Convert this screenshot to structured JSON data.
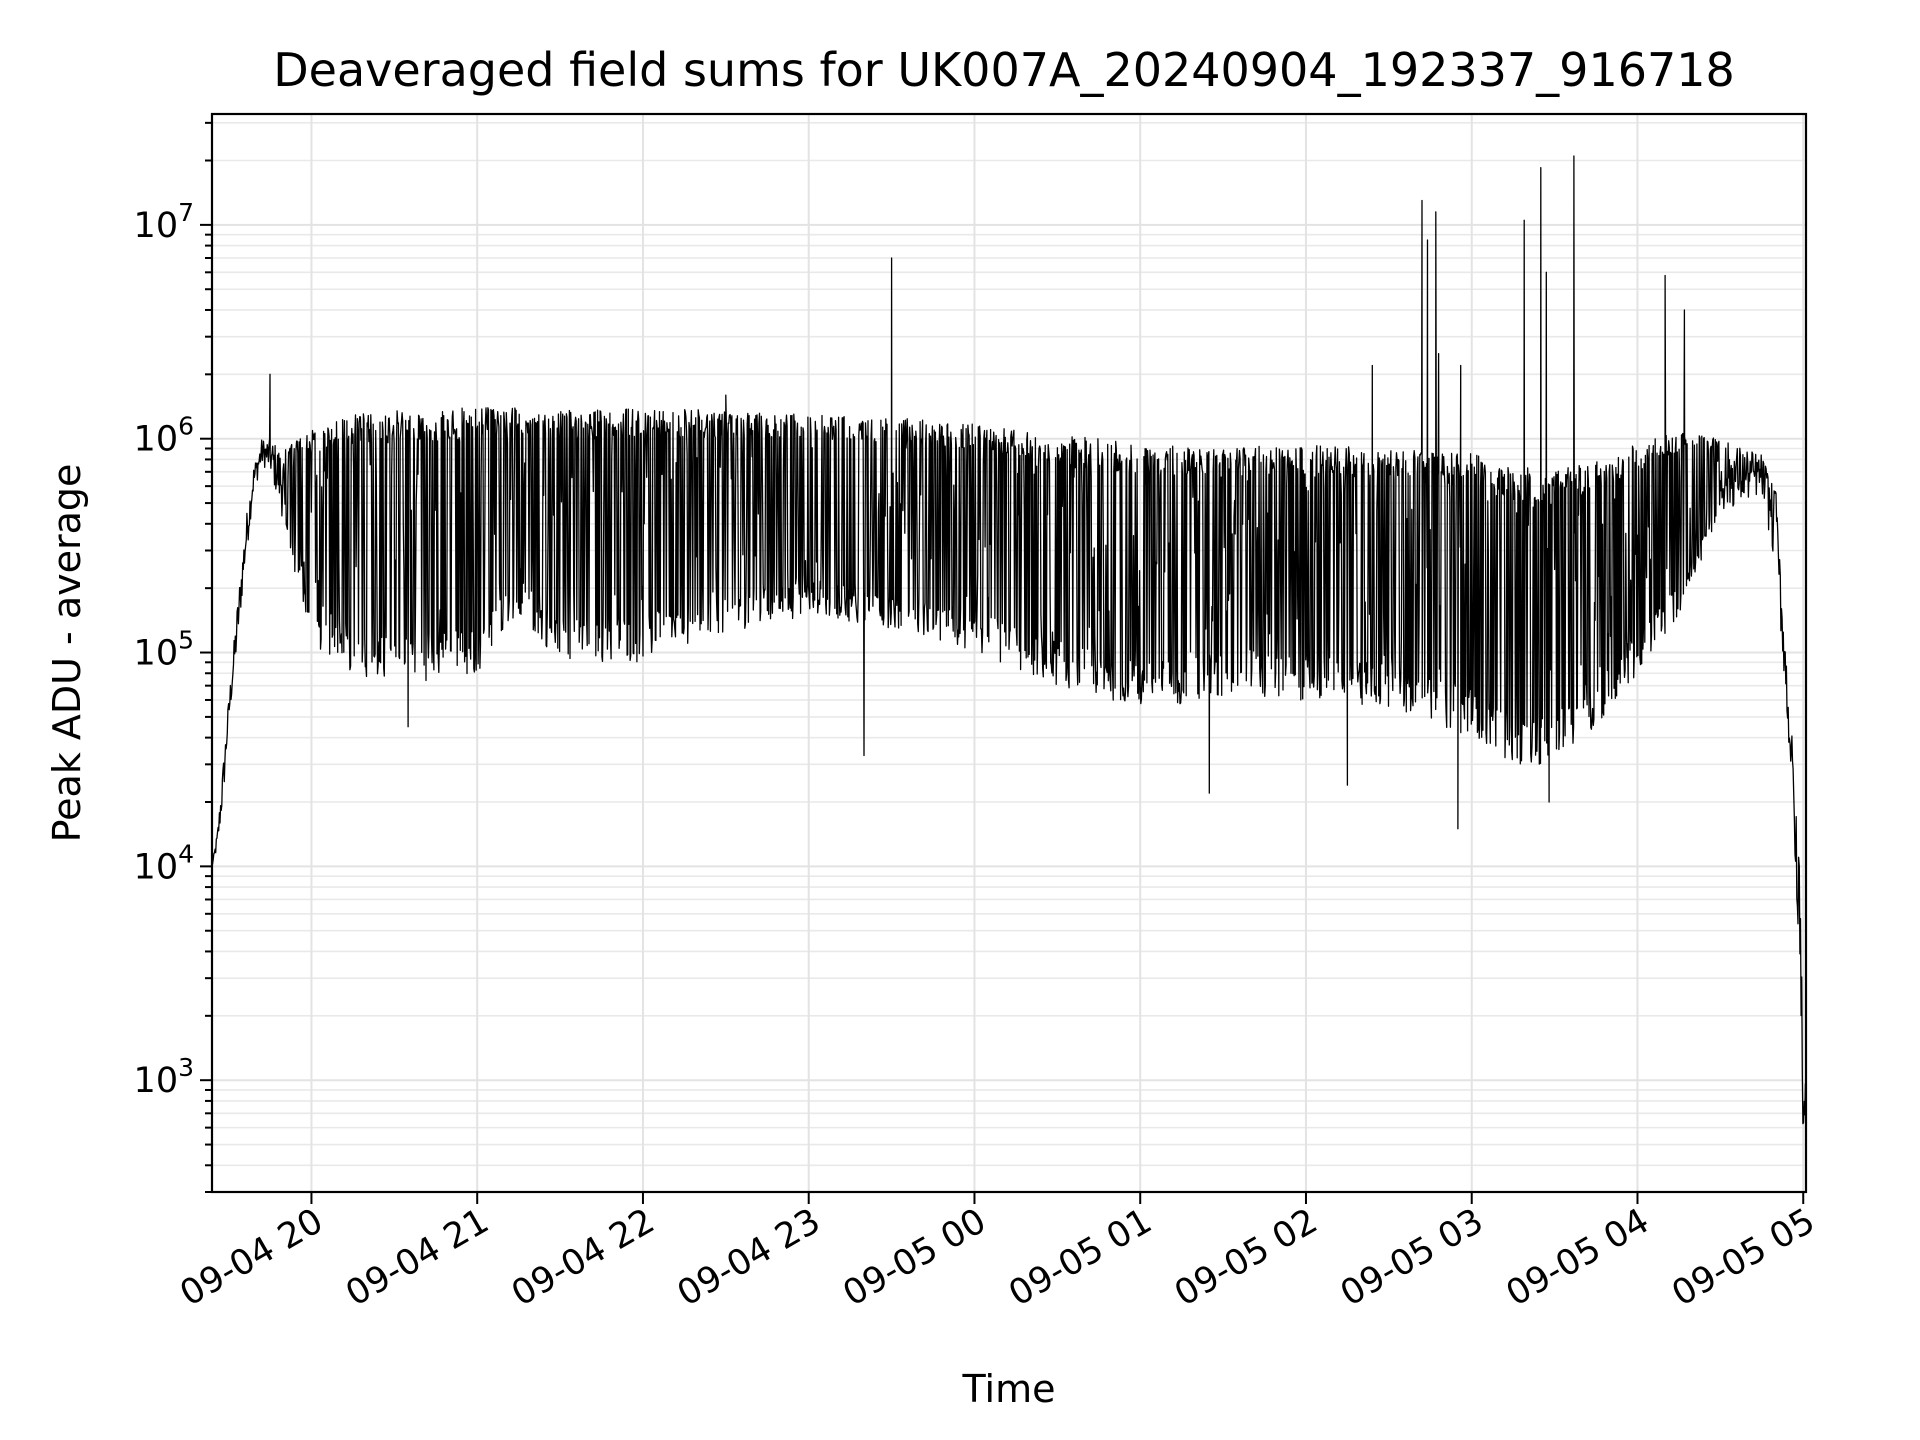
{
  "chart_data": {
    "type": "line",
    "title": "Deaveraged field sums for UK007A_20240904_192337_916718",
    "xlabel": "Time",
    "ylabel": "Peak ADU - average",
    "yscale": "log",
    "ylim": [
      300,
      33000000
    ],
    "xlim": [
      "2024-09-04 19:24",
      "2024-09-05 05:01"
    ],
    "grid": true,
    "line_color": "#000000",
    "x_ticks": [
      {
        "value": "2024-09-04 20:00",
        "label": "09-04 20"
      },
      {
        "value": "2024-09-04 21:00",
        "label": "09-04 21"
      },
      {
        "value": "2024-09-04 22:00",
        "label": "09-04 22"
      },
      {
        "value": "2024-09-04 23:00",
        "label": "09-04 23"
      },
      {
        "value": "2024-09-05 00:00",
        "label": "09-05 00"
      },
      {
        "value": "2024-09-05 01:00",
        "label": "09-05 01"
      },
      {
        "value": "2024-09-05 02:00",
        "label": "09-05 02"
      },
      {
        "value": "2024-09-05 03:00",
        "label": "09-05 03"
      },
      {
        "value": "2024-09-05 04:00",
        "label": "09-05 04"
      },
      {
        "value": "2024-09-05 05:00",
        "label": "09-05 05"
      }
    ],
    "y_ticks": [
      {
        "value": 1000,
        "base": "10",
        "exp": "3"
      },
      {
        "value": 10000,
        "base": "10",
        "exp": "4"
      },
      {
        "value": 100000,
        "base": "10",
        "exp": "5"
      },
      {
        "value": 1000000,
        "base": "10",
        "exp": "6"
      },
      {
        "value": 10000000,
        "base": "10",
        "exp": "7"
      }
    ],
    "envelope": [
      {
        "x": "2024-09-04 19:24",
        "low": 10000,
        "high": 10000
      },
      {
        "x": "2024-09-04 19:26",
        "low": 12000,
        "high": 15000
      },
      {
        "x": "2024-09-04 19:28",
        "low": 20000,
        "high": 30000
      },
      {
        "x": "2024-09-04 19:30",
        "low": 45000,
        "high": 60000
      },
      {
        "x": "2024-09-04 19:33",
        "low": 100000,
        "high": 160000
      },
      {
        "x": "2024-09-04 19:36",
        "low": 250000,
        "high": 400000
      },
      {
        "x": "2024-09-04 19:39",
        "low": 550000,
        "high": 750000
      },
      {
        "x": "2024-09-04 19:42",
        "low": 750000,
        "high": 1000000
      },
      {
        "x": "2024-09-04 19:45",
        "low": 700000,
        "high": 1000000
      },
      {
        "x": "2024-09-04 19:50",
        "low": 400000,
        "high": 900000
      },
      {
        "x": "2024-09-04 19:55",
        "low": 200000,
        "high": 1000000
      },
      {
        "x": "2024-09-04 20:00",
        "low": 110000,
        "high": 1100000
      },
      {
        "x": "2024-09-04 20:15",
        "low": 80000,
        "high": 1300000
      },
      {
        "x": "2024-09-04 20:30",
        "low": 70000,
        "high": 1350000
      },
      {
        "x": "2024-09-04 21:00",
        "low": 80000,
        "high": 1400000
      },
      {
        "x": "2024-09-04 21:15",
        "low": 150000,
        "high": 1400000
      },
      {
        "x": "2024-09-04 21:30",
        "low": 90000,
        "high": 1350000
      },
      {
        "x": "2024-09-04 22:00",
        "low": 90000,
        "high": 1400000
      },
      {
        "x": "2024-09-04 22:30",
        "low": 120000,
        "high": 1350000
      },
      {
        "x": "2024-09-04 23:00",
        "low": 150000,
        "high": 1300000
      },
      {
        "x": "2024-09-04 23:30",
        "low": 130000,
        "high": 1250000
      },
      {
        "x": "2024-09-05 00:00",
        "low": 100000,
        "high": 1200000
      },
      {
        "x": "2024-09-05 00:30",
        "low": 70000,
        "high": 1050000
      },
      {
        "x": "2024-09-05 01:00",
        "low": 55000,
        "high": 950000
      },
      {
        "x": "2024-09-05 01:30",
        "low": 60000,
        "high": 900000
      },
      {
        "x": "2024-09-05 02:00",
        "low": 60000,
        "high": 950000
      },
      {
        "x": "2024-09-05 02:30",
        "low": 55000,
        "high": 900000
      },
      {
        "x": "2024-09-05 03:00",
        "low": 40000,
        "high": 850000
      },
      {
        "x": "2024-09-05 03:15",
        "low": 30000,
        "high": 750000
      },
      {
        "x": "2024-09-05 03:30",
        "low": 30000,
        "high": 700000
      },
      {
        "x": "2024-09-05 03:45",
        "low": 45000,
        "high": 800000
      },
      {
        "x": "2024-09-05 04:00",
        "low": 80000,
        "high": 950000
      },
      {
        "x": "2024-09-05 04:15",
        "low": 150000,
        "high": 1100000
      },
      {
        "x": "2024-09-05 04:30",
        "low": 450000,
        "high": 1000000
      },
      {
        "x": "2024-09-05 04:45",
        "low": 550000,
        "high": 850000
      },
      {
        "x": "2024-09-05 04:50",
        "low": 250000,
        "high": 600000
      },
      {
        "x": "2024-09-05 04:53",
        "low": 80000,
        "high": 150000
      },
      {
        "x": "2024-09-05 04:56",
        "low": 20000,
        "high": 40000
      },
      {
        "x": "2024-09-05 04:59",
        "low": 3000,
        "high": 8000
      },
      {
        "x": "2024-09-05 05:00",
        "low": 500,
        "high": 1000
      }
    ],
    "spikes": [
      {
        "x": "2024-09-04 19:45",
        "y": 2000000
      },
      {
        "x": "2024-09-04 22:30",
        "y": 1600000
      },
      {
        "x": "2024-09-04 23:30",
        "y": 7000000
      },
      {
        "x": "2024-09-05 02:24",
        "y": 2200000
      },
      {
        "x": "2024-09-05 02:42",
        "y": 13000000
      },
      {
        "x": "2024-09-05 02:44",
        "y": 8500000
      },
      {
        "x": "2024-09-05 02:47",
        "y": 11500000
      },
      {
        "x": "2024-09-05 02:48",
        "y": 2500000
      },
      {
        "x": "2024-09-05 02:56",
        "y": 2200000
      },
      {
        "x": "2024-09-05 03:19",
        "y": 10500000
      },
      {
        "x": "2024-09-05 03:25",
        "y": 18500000
      },
      {
        "x": "2024-09-05 03:27",
        "y": 6000000
      },
      {
        "x": "2024-09-05 03:37",
        "y": 21000000
      },
      {
        "x": "2024-09-05 04:10",
        "y": 5800000
      },
      {
        "x": "2024-09-05 04:17",
        "y": 4000000
      }
    ],
    "dips": [
      {
        "x": "2024-09-04 20:35",
        "y": 45000
      },
      {
        "x": "2024-09-04 23:20",
        "y": 33000
      },
      {
        "x": "2024-09-05 01:25",
        "y": 22000
      },
      {
        "x": "2024-09-05 02:15",
        "y": 24000
      },
      {
        "x": "2024-09-05 02:55",
        "y": 15000
      },
      {
        "x": "2024-09-05 03:28",
        "y": 20000
      }
    ]
  }
}
